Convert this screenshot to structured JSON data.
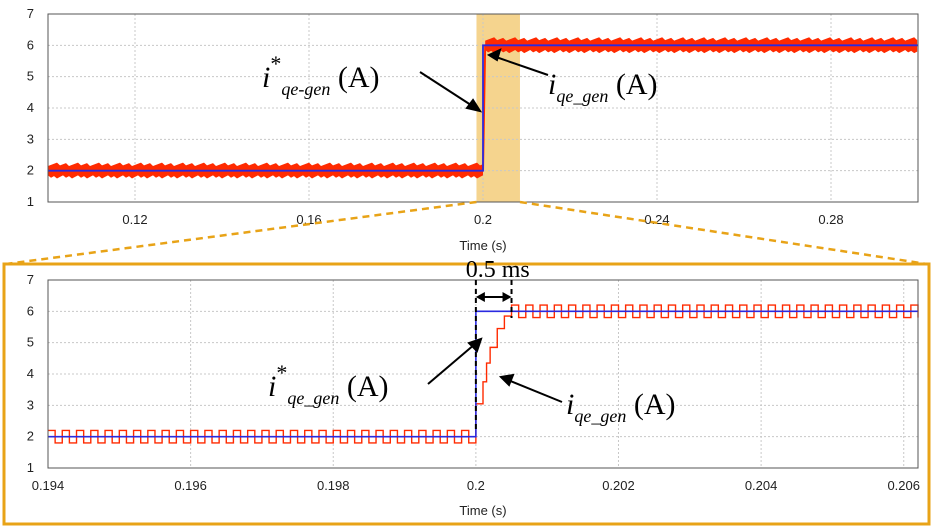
{
  "chart_data": [
    {
      "type": "line",
      "xlabel": "Time (s)",
      "xlim": [
        0.1,
        0.3
      ],
      "ylim": [
        1,
        7
      ],
      "x_ticks": [
        "0.12",
        "0.16",
        "0.2",
        "0.24",
        "0.28"
      ],
      "y_ticks": [
        "1",
        "2",
        "3",
        "4",
        "5",
        "6",
        "7"
      ],
      "grid": true,
      "highlight_region": [
        0.1985,
        0.2085
      ],
      "series": [
        {
          "color": "#ff2a00",
          "x": [
            0.1,
            0.2,
            0.2005,
            0.3
          ],
          "y": [
            2,
            2,
            6,
            6
          ],
          "ripple": 0.25
        },
        {
          "color": "#2a2ae0",
          "x": [
            0.1,
            0.2,
            0.2,
            0.3
          ],
          "y": [
            2,
            2,
            6,
            6
          ]
        }
      ],
      "annotations": [
        {
          "base": "i",
          "sup": "*",
          "sub": "qe-gen",
          "suffix": " (A)"
        },
        {
          "base": "i",
          "sup": "",
          "sub": "qe_gen",
          "suffix": " (A)"
        }
      ]
    },
    {
      "type": "line",
      "xlabel": "Time (s)",
      "xlim": [
        0.194,
        0.2062
      ],
      "ylim": [
        1,
        7
      ],
      "x_ticks": [
        "0.194",
        "0.196",
        "0.198",
        "0.2",
        "0.202",
        "0.204",
        "0.206"
      ],
      "y_ticks": [
        "1",
        "2",
        "3",
        "4",
        "5",
        "6",
        "7"
      ],
      "grid": true,
      "series": [
        {
          "color": "#2a2ae0",
          "x": [
            0.194,
            0.2,
            0.2,
            0.2062
          ],
          "y": [
            2,
            2,
            6,
            6
          ]
        },
        {
          "color": "#ff2a00",
          "pre_level": 2.0,
          "post_level": 6.0,
          "ripple": 0.2,
          "step_times": [
            0.2,
            0.20005,
            0.2001,
            0.20015,
            0.2002,
            0.2003,
            0.2004,
            0.2005
          ],
          "step_values": [
            3.05,
            3.05,
            3.75,
            4.35,
            4.85,
            5.45,
            5.85,
            6.0
          ]
        }
      ],
      "dimension_label": "0.5 ms",
      "dimension_range": [
        0.2,
        0.2005
      ],
      "annotations": [
        {
          "base": "i",
          "sup": "*",
          "sub": "qe_gen",
          "suffix": " (A)"
        },
        {
          "base": "i",
          "sup": "",
          "sub": "qe_gen",
          "suffix": " (A)"
        }
      ]
    }
  ],
  "colors": {
    "frame": "#e8a317",
    "highlight": "#f3cd7a",
    "red": "#ff2a00",
    "blue": "#2a2ae0"
  }
}
